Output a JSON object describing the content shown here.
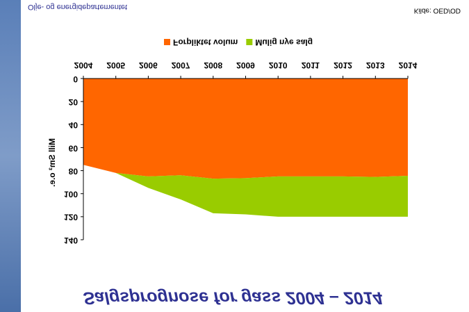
{
  "chart_data": {
    "type": "stacked_area",
    "title": "Salgsprognose for gass 2004 – 2014",
    "ylabel": "Mill Sm³ o.e.",
    "source": "Kilde: OED/OD",
    "footer": "Olje- og energidepartementet",
    "categories": [
      "2004",
      "2005",
      "2006",
      "2007",
      "2008",
      "2009",
      "2010",
      "2011",
      "2012",
      "2013",
      "2014"
    ],
    "series": [
      {
        "name": "Forpliktet volum",
        "color": "#ff6600",
        "values": [
          75,
          82,
          85,
          84,
          87,
          86.5,
          85,
          85,
          85,
          85.5,
          84.5
        ]
      },
      {
        "name": "Mulig nye salg",
        "color": "#99cc00",
        "values": [
          0,
          0,
          10,
          21,
          30,
          31.5,
          35,
          35,
          35,
          34.5,
          35.5
        ]
      }
    ],
    "ylim": [
      0,
      140
    ],
    "yticks": [
      0,
      20,
      40,
      60,
      80,
      100,
      120,
      140
    ],
    "grid": false
  }
}
